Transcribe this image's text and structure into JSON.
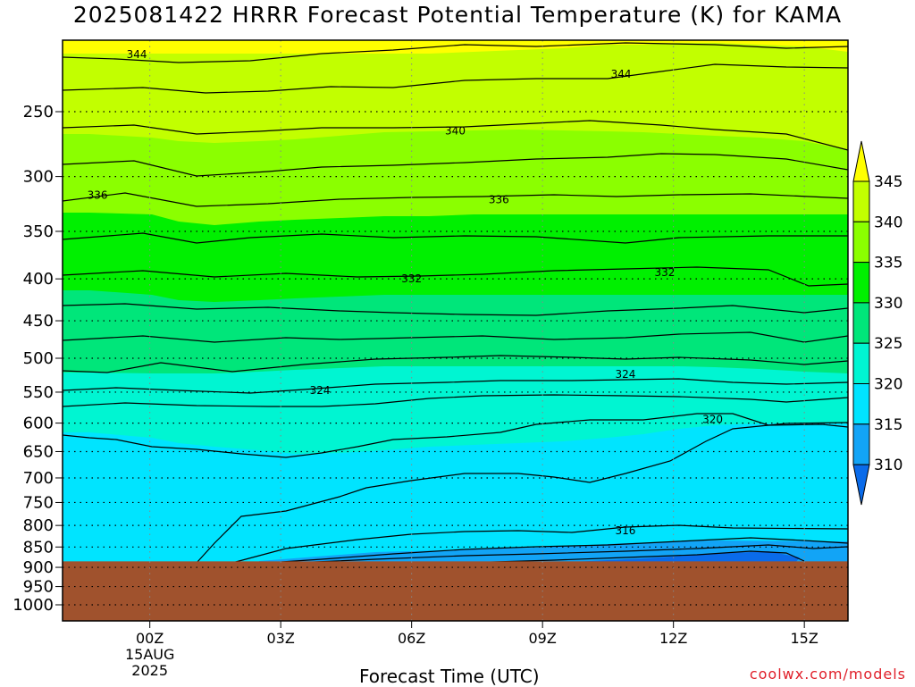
{
  "title": "2025081422 HRRR Forecast Potential Temperature (K) for KAMA",
  "credit": "coolwx.com/models",
  "chart_data": {
    "type": "heatmap",
    "title": "2025081422 HRRR Forecast Potential Temperature (K) for KAMA",
    "xlabel": "Forecast Time (UTC)",
    "ylabel": "",
    "x_ticks": [
      "00Z",
      "03Z",
      "06Z",
      "09Z",
      "12Z",
      "15Z"
    ],
    "x_tick_hours": [
      0,
      3,
      6,
      9,
      12,
      15
    ],
    "x_date_lines": [
      "15AUG",
      "2025"
    ],
    "xlim_hours": [
      -2,
      16
    ],
    "y_ticks": [
      250,
      300,
      350,
      400,
      450,
      500,
      550,
      600,
      650,
      700,
      750,
      800,
      850,
      900,
      950,
      1000
    ],
    "ylim_hpa": [
      1035,
      200
    ],
    "y_axis_scale": "log-pressure",
    "grid": true,
    "surface_pressure_hpa": 885,
    "surface_color": "#a0522d",
    "colorbar": {
      "levels": [
        310,
        315,
        320,
        325,
        330,
        335,
        340,
        345
      ],
      "colors": [
        "#0a6bea",
        "#12a4f6",
        "#00e4ff",
        "#00f5d2",
        "#00e67a",
        "#00f000",
        "#8bff00",
        "#c2ff00",
        "#ffff00"
      ],
      "extend": "both"
    },
    "contour_labels": [
      {
        "value": "344",
        "hour": -0.3,
        "p": 213
      },
      {
        "value": "344",
        "hour": 10.8,
        "p": 225
      },
      {
        "value": "340",
        "hour": 7.0,
        "p": 264
      },
      {
        "value": "336",
        "hour": -1.2,
        "p": 316
      },
      {
        "value": "336",
        "hour": 8.0,
        "p": 320
      },
      {
        "value": "332",
        "hour": 6.0,
        "p": 400
      },
      {
        "value": "332",
        "hour": 11.8,
        "p": 393
      },
      {
        "value": "324",
        "hour": 3.9,
        "p": 547
      },
      {
        "value": "324",
        "hour": 10.9,
        "p": 523
      },
      {
        "value": "320",
        "hour": 12.9,
        "p": 594
      },
      {
        "value": "316",
        "hour": 10.9,
        "p": 812
      }
    ]
  }
}
